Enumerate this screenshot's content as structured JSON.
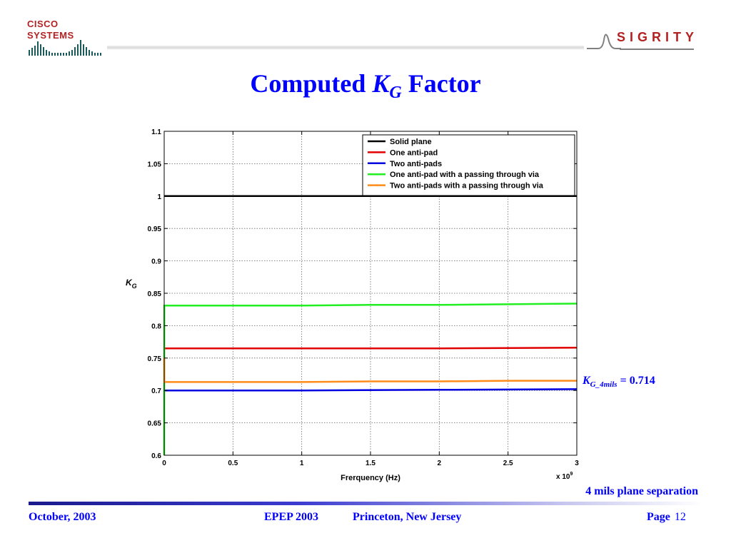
{
  "header": {
    "cisco_logo_text": "Cisco Systems",
    "sigrity_logo_text": "SIGRITY"
  },
  "slide": {
    "title_prefix": "Computed ",
    "title_k": "K",
    "title_sub": "G",
    "title_suffix": " Factor"
  },
  "annotation": {
    "k": "K",
    "sub": "G_4mils",
    "value_text": " = 0.714",
    "separation": "4 mils plane separation",
    "color": "#0000ff"
  },
  "footer": {
    "date": "October, 2003",
    "conference": "EPEP 2003",
    "location": "Princeton, New Jersey",
    "page_label": "Page",
    "page_number": "12"
  },
  "chart_data": {
    "type": "line",
    "xlabel": "Frerquency (Hz)",
    "ylabel": "K",
    "ylabel_sub": "G",
    "x_multiplier": "x 10",
    "x_multiplier_exp": "9",
    "xlim": [
      0,
      3
    ],
    "ylim": [
      0.6,
      1.1
    ],
    "xticks": [
      0,
      0.5,
      1,
      1.5,
      2,
      2.5,
      3
    ],
    "xtick_labels": [
      "0",
      "0.5",
      "1",
      "1.5",
      "2",
      "2.5",
      "3"
    ],
    "yticks": [
      0.6,
      0.65,
      0.7,
      0.75,
      0.8,
      0.85,
      0.9,
      0.95,
      1,
      1.05,
      1.1
    ],
    "ytick_labels": [
      "0.6",
      "0.65",
      "0.7",
      "0.75",
      "0.8",
      "0.85",
      "0.9",
      "0.95",
      "1",
      "1.05",
      "1.1"
    ],
    "grid": true,
    "legend_position": "top-right",
    "series": [
      {
        "name": "Solid plane",
        "color": "#000000",
        "x": [
          0,
          1,
          2,
          3
        ],
        "values": [
          1.0,
          1.0,
          1.0,
          1.0
        ]
      },
      {
        "name": "One anti-pad",
        "color": "#e00000",
        "x": [
          0,
          1,
          2,
          3
        ],
        "values": [
          0.765,
          0.765,
          0.765,
          0.766
        ]
      },
      {
        "name": "Two anti-pads",
        "color": "#0000e0",
        "x": [
          0,
          1,
          2,
          3
        ],
        "values": [
          0.7,
          0.7,
          0.701,
          0.702
        ]
      },
      {
        "name": "One anti-pad with a passing through via",
        "color": "#22ee22",
        "x": [
          0,
          0.001,
          0.5,
          1,
          1.5,
          2,
          2.5,
          3
        ],
        "values": [
          0.6,
          0.831,
          0.831,
          0.831,
          0.832,
          0.832,
          0.833,
          0.834
        ]
      },
      {
        "name": "Two anti-pads with a passing through via",
        "color": "#ff8c1a",
        "x": [
          0,
          0.001,
          0.5,
          1,
          1.5,
          2,
          2.5,
          3
        ],
        "values": [
          0.75,
          0.713,
          0.713,
          0.713,
          0.714,
          0.714,
          0.715,
          0.715
        ]
      }
    ]
  }
}
